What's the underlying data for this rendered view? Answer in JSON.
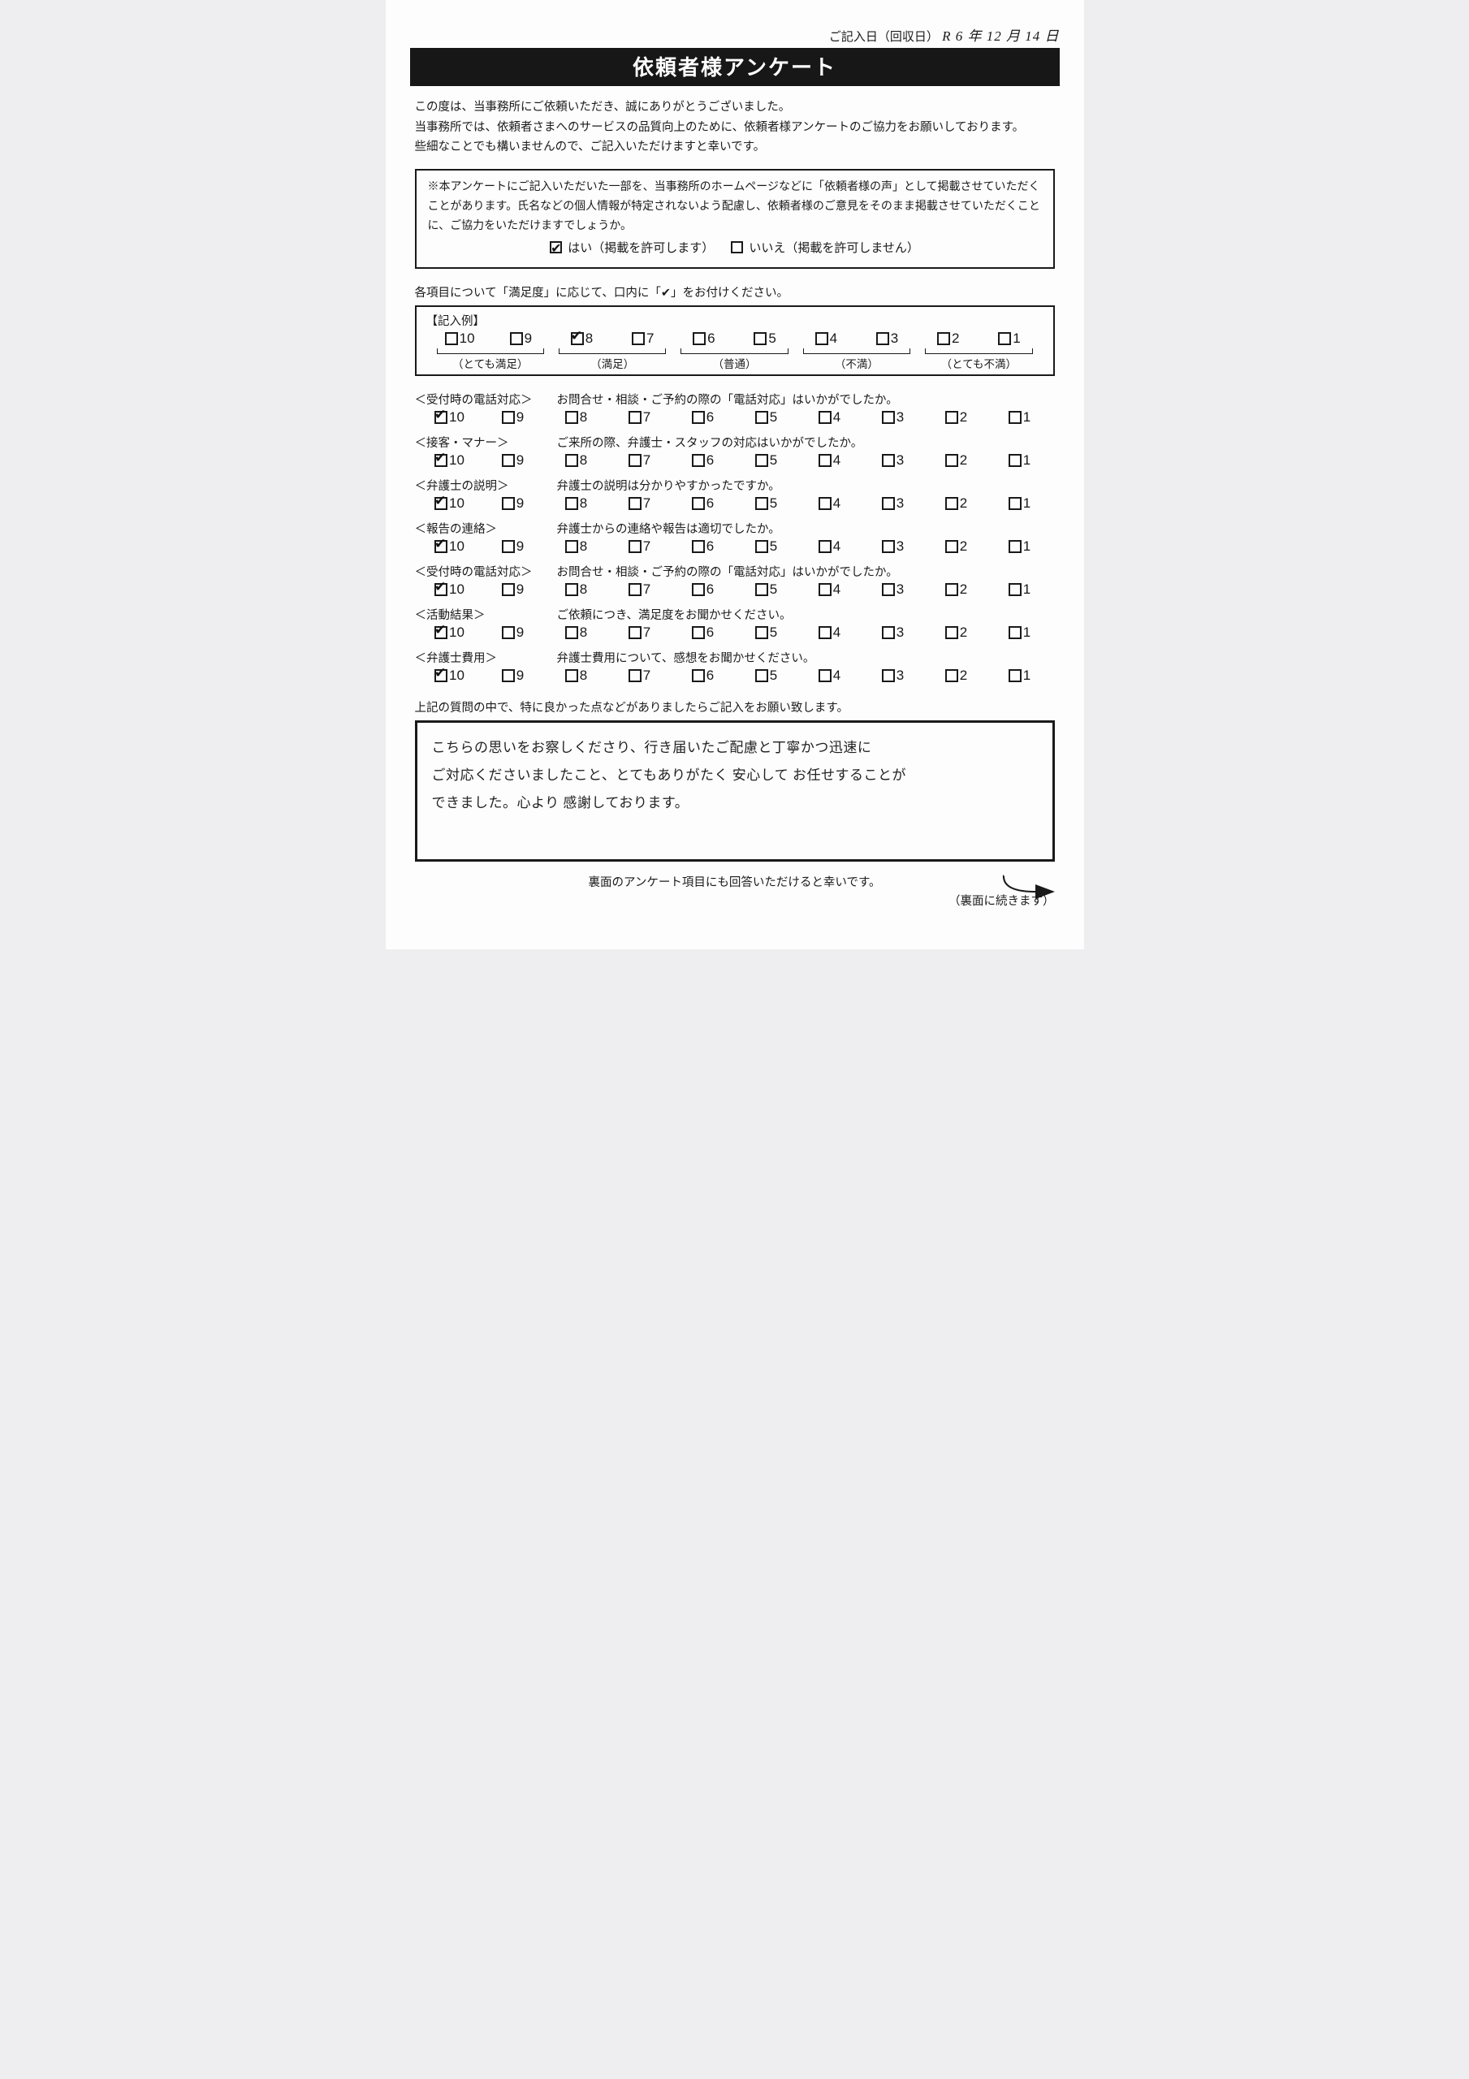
{
  "date_label": "ご記入日（回収日）",
  "date_value": "R 6 年 12 月 14 日",
  "date_suffix": "",
  "title": "依頼者様アンケート",
  "intro_lines": [
    "この度は、当事務所にご依頼いただき、誠にありがとうございました。",
    "当事務所では、依頼者さまへのサービスの品質向上のために、依頼者様アンケートのご協力をお願いしております。",
    "些細なことでも構いませんので、ご記入いただけますと幸いです。"
  ],
  "consent_text": "※本アンケートにご記入いただいた一部を、当事務所のホームページなどに「依頼者様の声」として掲載させていただくことがあります。氏名などの個人情報が特定されないよう配慮し、依頼者様のご意見をそのまま掲載させていただくことに、ご協力をいただけますでしょうか。",
  "consent_yes": "はい（掲載を許可します）",
  "consent_no": "いいえ（掲載を許可しません）",
  "consent_selected": "yes",
  "instruction": "各項目について「満足度」に応じて、口内に「✔」をお付けください。",
  "example_label": "【記入例】",
  "scale_values": [
    "10",
    "9",
    "8",
    "7",
    "6",
    "5",
    "4",
    "3",
    "2",
    "1"
  ],
  "example_checked": "8",
  "scale_labels": [
    {
      "text": "（とても満足）",
      "span": 2
    },
    {
      "text": "（満足）",
      "span": 2
    },
    {
      "text": "（普通）",
      "span": 2
    },
    {
      "text": "（不満）",
      "span": 2
    },
    {
      "text": "（とても不満）",
      "span": 2
    }
  ],
  "questions": [
    {
      "title": "＜受付時の電話対応＞",
      "desc": "お問合せ・相談・ご予約の際の「電話対応」はいかがでしたか。",
      "checked": "10"
    },
    {
      "title": "＜接客・マナー＞",
      "desc": "ご来所の際、弁護士・スタッフの対応はいかがでしたか。",
      "checked": "10"
    },
    {
      "title": "＜弁護士の説明＞",
      "desc": "弁護士の説明は分かりやすかったですか。",
      "checked": "10"
    },
    {
      "title": "＜報告の連絡＞",
      "desc": "弁護士からの連絡や報告は適切でしたか。",
      "checked": "10"
    },
    {
      "title": "＜受付時の電話対応＞",
      "desc": "お問合せ・相談・ご予約の際の「電話対応」はいかがでしたか。",
      "checked": "10"
    },
    {
      "title": "＜活動結果＞",
      "desc": "ご依頼につき、満足度をお聞かせください。",
      "checked": "10"
    },
    {
      "title": "＜弁護士費用＞",
      "desc": "弁護士費用について、感想をお聞かせください。",
      "checked": "10"
    }
  ],
  "comment_label": "上記の質問の中で、特に良かった点などがありましたらご記入をお願い致します。",
  "comment_text": "こちらの思いをお察しくださり、行き届いたご配慮と丁寧かつ迅速に\nご対応くださいましたこと、とてもありがたく 安心して お任せすることが\nできました。心より 感謝しております。",
  "footer_main": "裏面のアンケート項目にも回答いただけると幸いです。",
  "footer_sub": "（裏面に続きます）",
  "colors": {
    "page_bg": "#fdfdfd",
    "body_bg": "#eeeef0",
    "text": "#1a1a1a",
    "title_bg": "#171717",
    "title_fg": "#ffffff"
  }
}
